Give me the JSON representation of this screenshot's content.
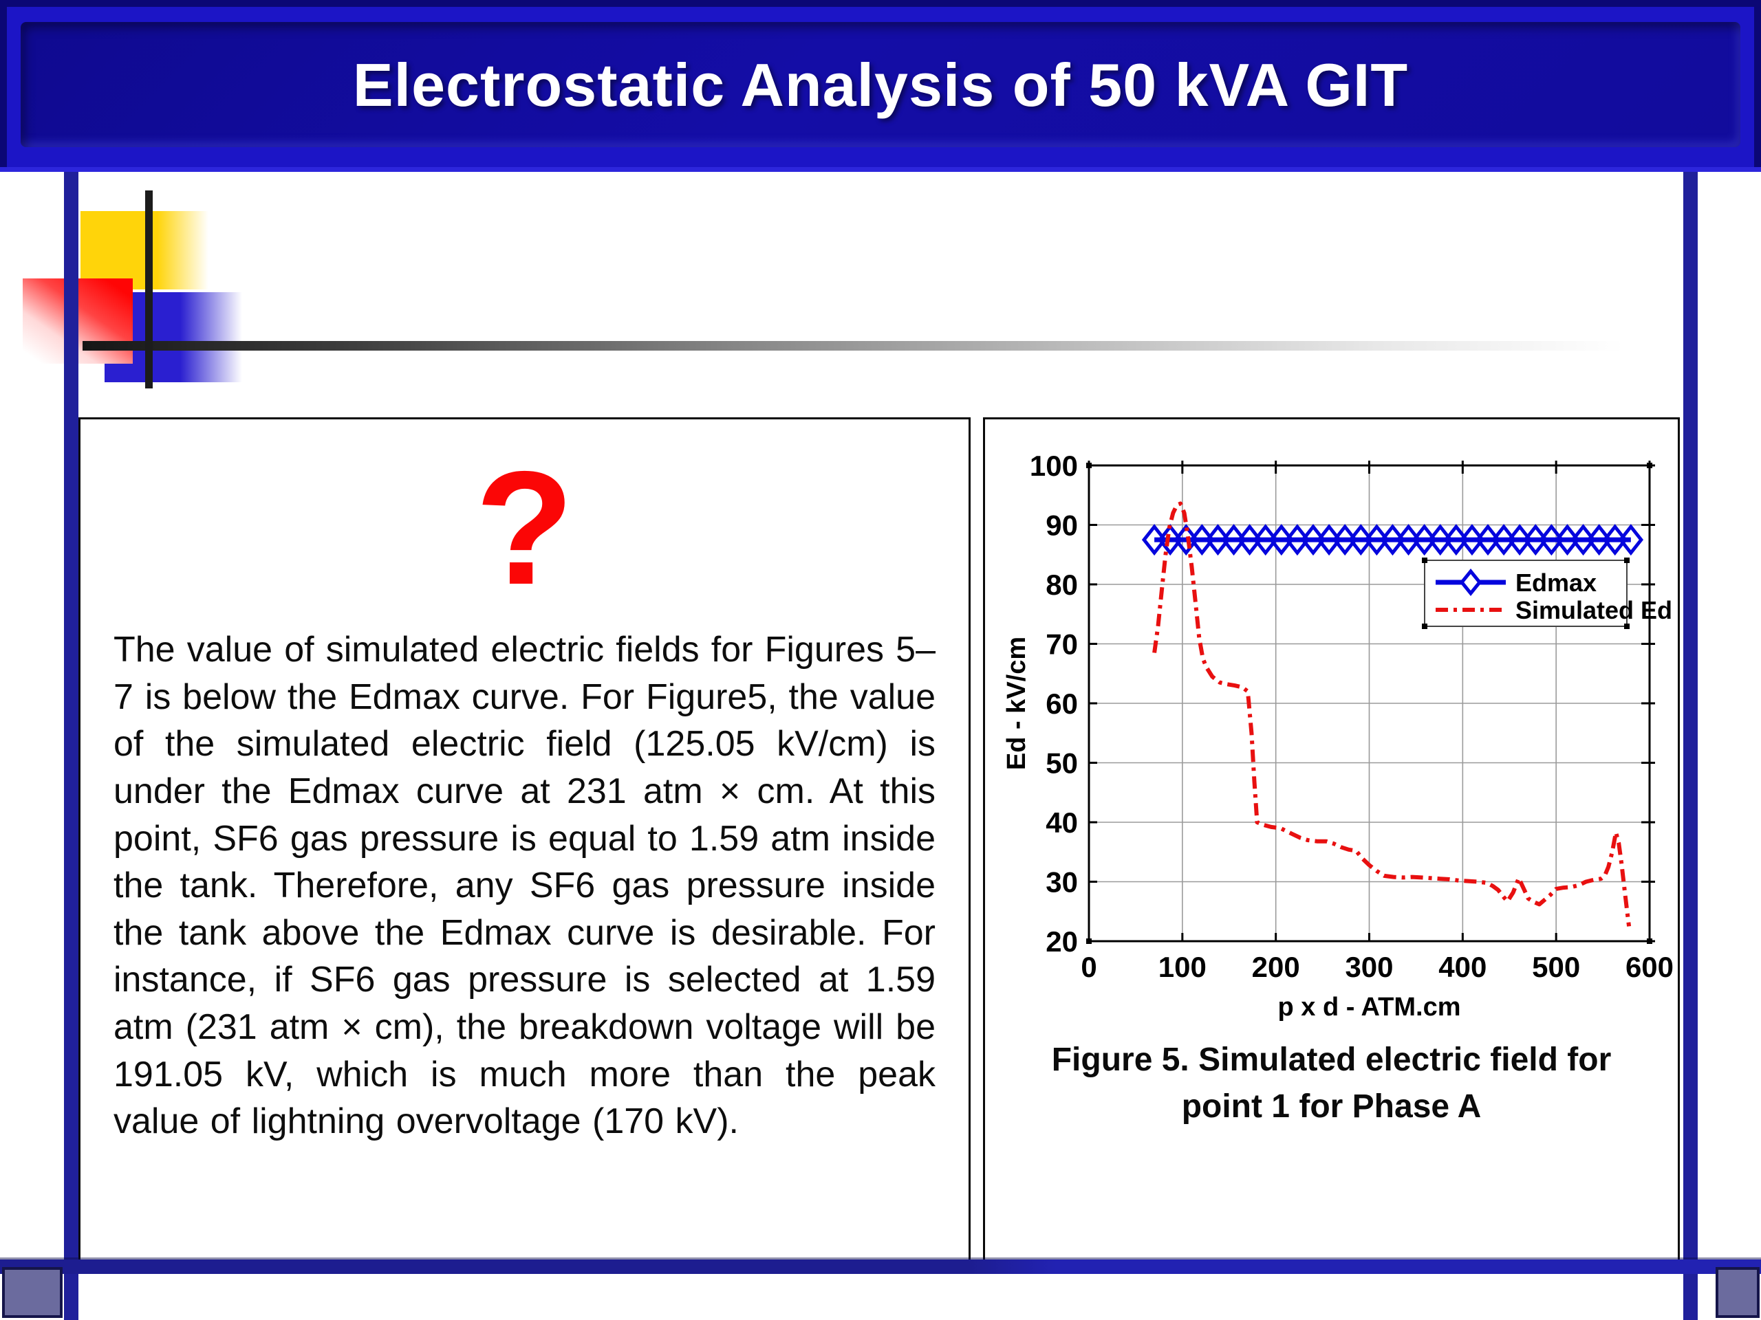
{
  "slide": {
    "title": "Electrostatic Analysis of 50 kVA GIT"
  },
  "left_panel": {
    "question_mark": "?",
    "paragraph": "The value of simulated electric fields for Figures 5–7 is below the Edmax curve. For Figure5, the value of the simulated electric field (125.05 kV/cm) is under the Edmax curve at 231 atm × cm. At this point, SF6 gas pressure is equal to 1.59 atm inside the tank. Therefore, any SF6 gas pressure inside the tank above the Edmax curve is desirable. For instance, if SF6 gas pressure is selected at 1.59 atm (231 atm × cm), the breakdown voltage will be 191.05 kV, which is much more than the peak value of lightning overvoltage (170 kV)."
  },
  "figure": {
    "caption_lines": [
      "Figure 5. Simulated electric field for",
      "point 1 for Phase A"
    ]
  },
  "chart_data": {
    "type": "line",
    "title": "",
    "xlabel": "p x d - ATM.cm",
    "ylabel": "Ed - kV/cm",
    "xlim": [
      0,
      600
    ],
    "ylim": [
      20,
      100
    ],
    "xticks": [
      0,
      100,
      200,
      300,
      400,
      500,
      600
    ],
    "yticks": [
      20,
      30,
      40,
      50,
      60,
      70,
      80,
      90,
      100
    ],
    "grid": true,
    "legend_position": "upper right",
    "series": [
      {
        "name": "Edmax",
        "color": "#0505dd",
        "style": "solid",
        "marker": "diamond",
        "points": [
          [
            70,
            87.5
          ],
          [
            87,
            87.5
          ],
          [
            104,
            87.5
          ],
          [
            121,
            87.5
          ],
          [
            138,
            87.5
          ],
          [
            155,
            87.5
          ],
          [
            172,
            87.5
          ],
          [
            189,
            87.5
          ],
          [
            206,
            87.5
          ],
          [
            223,
            87.5
          ],
          [
            240,
            87.5
          ],
          [
            257,
            87.5
          ],
          [
            274,
            87.5
          ],
          [
            291,
            87.5
          ],
          [
            308,
            87.5
          ],
          [
            325,
            87.5
          ],
          [
            342,
            87.5
          ],
          [
            359,
            87.5
          ],
          [
            376,
            87.5
          ],
          [
            393,
            87.5
          ],
          [
            410,
            87.5
          ],
          [
            427,
            87.5
          ],
          [
            444,
            87.5
          ],
          [
            461,
            87.5
          ],
          [
            478,
            87.5
          ],
          [
            495,
            87.5
          ],
          [
            512,
            87.5
          ],
          [
            529,
            87.5
          ],
          [
            546,
            87.5
          ],
          [
            563,
            87.5
          ],
          [
            580,
            87.5
          ]
        ]
      },
      {
        "name": "Simulated Ed",
        "color": "#e81010",
        "style": "dashdot",
        "marker": "none",
        "points": [
          [
            70,
            68.5
          ],
          [
            74,
            73
          ],
          [
            78,
            79
          ],
          [
            82,
            85
          ],
          [
            86,
            89.5
          ],
          [
            90,
            92
          ],
          [
            94,
            93.3
          ],
          [
            98,
            93.6
          ],
          [
            102,
            92
          ],
          [
            106,
            88
          ],
          [
            110,
            83
          ],
          [
            114,
            77
          ],
          [
            118,
            71
          ],
          [
            122,
            67.5
          ],
          [
            126,
            66
          ],
          [
            132,
            64.5
          ],
          [
            140,
            63.5
          ],
          [
            148,
            63.2
          ],
          [
            156,
            63
          ],
          [
            164,
            62.7
          ],
          [
            170,
            62
          ],
          [
            174,
            55
          ],
          [
            177,
            47
          ],
          [
            180,
            40
          ],
          [
            186,
            39.6
          ],
          [
            195,
            39.2
          ],
          [
            205,
            39
          ],
          [
            210,
            38.6
          ],
          [
            218,
            38
          ],
          [
            226,
            37.4
          ],
          [
            234,
            37
          ],
          [
            244,
            36.8
          ],
          [
            254,
            36.8
          ],
          [
            262,
            36.4
          ],
          [
            270,
            35.8
          ],
          [
            278,
            35.4
          ],
          [
            286,
            35.2
          ],
          [
            292,
            34
          ],
          [
            300,
            32.8
          ],
          [
            308,
            31.8
          ],
          [
            316,
            31
          ],
          [
            326,
            30.8
          ],
          [
            336,
            30.7
          ],
          [
            346,
            30.8
          ],
          [
            356,
            30.7
          ],
          [
            366,
            30.6
          ],
          [
            376,
            30.5
          ],
          [
            386,
            30.4
          ],
          [
            396,
            30.2
          ],
          [
            406,
            30.1
          ],
          [
            416,
            30
          ],
          [
            426,
            29.8
          ],
          [
            432,
            29.3
          ],
          [
            438,
            28.6
          ],
          [
            444,
            27.4
          ],
          [
            448,
            26.7
          ],
          [
            454,
            28.2
          ],
          [
            460,
            30.6
          ],
          [
            466,
            28.6
          ],
          [
            470,
            27.2
          ],
          [
            476,
            26.6
          ],
          [
            482,
            26.2
          ],
          [
            488,
            27
          ],
          [
            494,
            27.8
          ],
          [
            500,
            28.8
          ],
          [
            508,
            29
          ],
          [
            516,
            29.1
          ],
          [
            524,
            29.4
          ],
          [
            532,
            30
          ],
          [
            540,
            30.3
          ],
          [
            548,
            30.5
          ],
          [
            552,
            31
          ],
          [
            556,
            32.5
          ],
          [
            560,
            35
          ],
          [
            564,
            38.3
          ],
          [
            567,
            36.5
          ],
          [
            570,
            33
          ],
          [
            573,
            29
          ],
          [
            576,
            25
          ],
          [
            578,
            22.5
          ]
        ]
      }
    ]
  },
  "colors": {
    "banner_blue": "#1c15c6",
    "banner_inner_blue": "#130d9f",
    "frame_navy": "#20209b",
    "corner_slate": "#6b6b9e",
    "deco_yellow": "#ffd40a",
    "deco_blue": "#2a1fd0",
    "deco_red": "#ff0505",
    "question_red": "#fb0606",
    "edmax_blue": "#0505dd",
    "simulated_red": "#e81010"
  }
}
